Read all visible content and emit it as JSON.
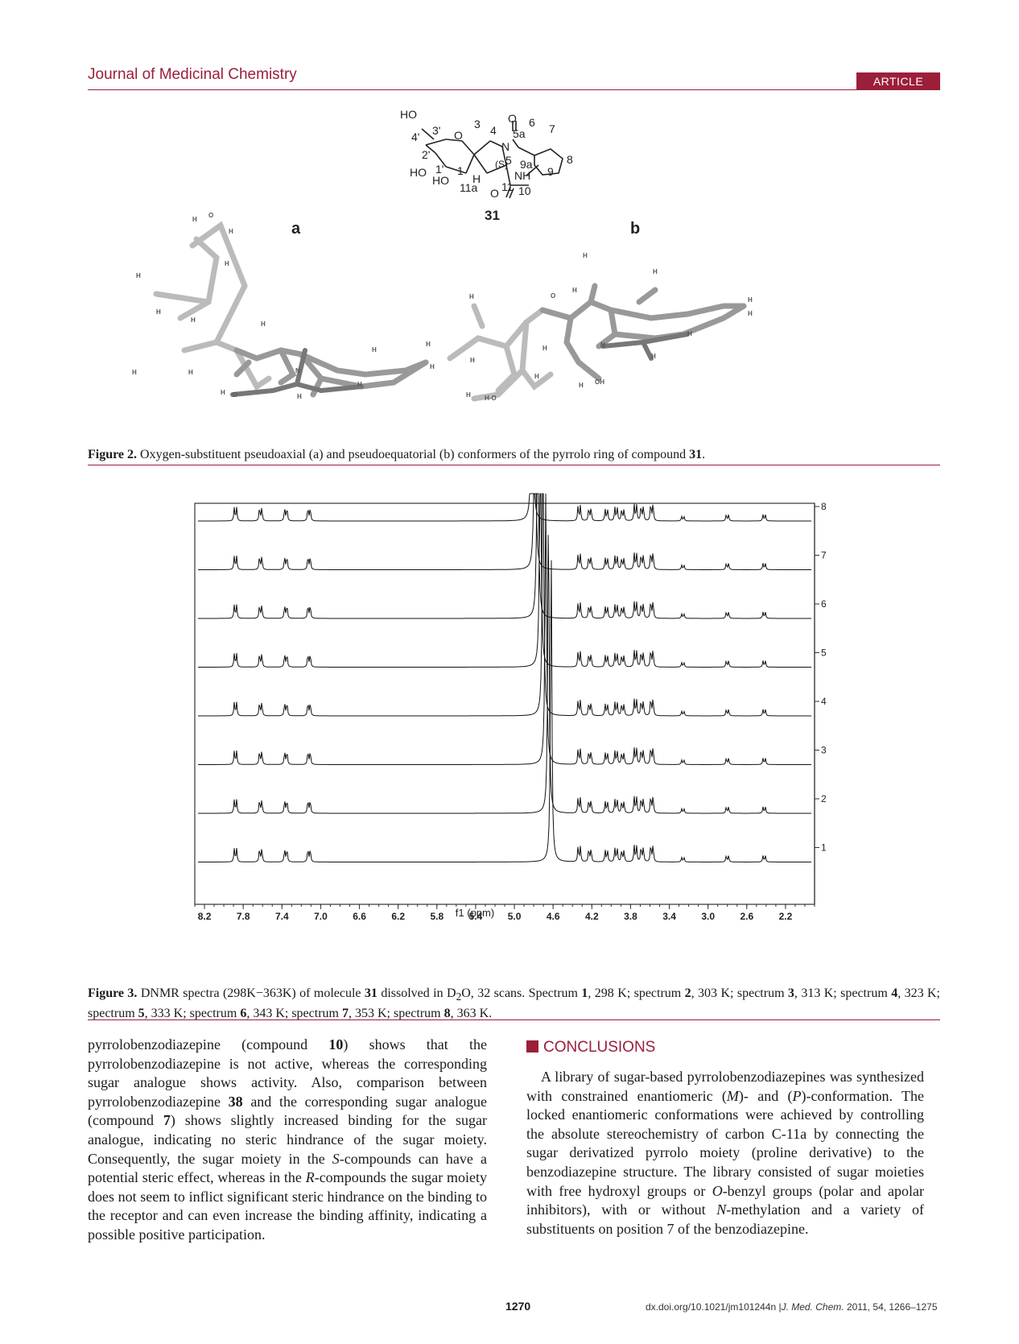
{
  "header": {
    "journal": "Journal of Medicinal Chemistry",
    "badge": "ARTICLE"
  },
  "figure2": {
    "compound_label": "31",
    "panel_a": "a",
    "panel_b": "b",
    "structure_labels": [
      "HO",
      "O",
      "3'",
      "4'",
      "3",
      "4",
      "6",
      "7",
      "5a",
      "N",
      "5",
      "2'",
      "1'",
      "(S)",
      "9a",
      "8",
      "HO",
      "HO",
      "1",
      "H",
      "NH",
      "9",
      "11a",
      "O",
      "11",
      "10"
    ],
    "caption_bold": "Figure 2.",
    "caption_text": " Oxygen-substituent pseudoaxial (a) and pseudoequatorial (b) conformers of the pyrrolo ring of compound ",
    "caption_compound": "31",
    "caption_end": "."
  },
  "figure3": {
    "x_axis_label": "f1 (ppm)",
    "x_ticks": [
      "8.2",
      "7.8",
      "7.4",
      "7.0",
      "6.6",
      "6.2",
      "5.8",
      "5.4",
      "5.0",
      "4.6",
      "4.2",
      "3.8",
      "3.4",
      "3.0",
      "2.6",
      "2.2"
    ],
    "spectrum_labels": [
      "8",
      "7",
      "6",
      "5",
      "4",
      "3",
      "2",
      "1"
    ],
    "caption": {
      "label": "Figure 3.",
      "t1": " DNMR spectra (298K−363K) of molecule ",
      "molecule": "31",
      "t2": " dissolved in D",
      "sub": "2",
      "t3": "O, 32 scans. Spectrum ",
      "s1": "1",
      "t4": ", 298 K; spectrum ",
      "s2": "2",
      "t5": ", 303 K; spectrum ",
      "s3": "3",
      "t6": ", 313 K; spectrum ",
      "s4": "4",
      "t7": ", 323 K; spectrum ",
      "s5": "5",
      "t8": ", 333 K; spectrum ",
      "s6": "6",
      "t9": ", 343 K; spectrum ",
      "s7": "7",
      "t10": ", 353 K; spectrum ",
      "s8": "8",
      "t11": ", 363 K."
    }
  },
  "chart_data": {
    "type": "line",
    "title": "",
    "xlabel": "f1 (ppm)",
    "ylabel": "",
    "x_reversed": true,
    "xlim": [
      8.3,
      1.9
    ],
    "series": [
      {
        "name": "1",
        "temperature": "298 K"
      },
      {
        "name": "2",
        "temperature": "303 K"
      },
      {
        "name": "3",
        "temperature": "313 K"
      },
      {
        "name": "4",
        "temperature": "323 K"
      },
      {
        "name": "5",
        "temperature": "333 K"
      },
      {
        "name": "6",
        "temperature": "343 K"
      },
      {
        "name": "7",
        "temperature": "353 K"
      },
      {
        "name": "8",
        "temperature": "363 K"
      }
    ],
    "peaks_ppm": [
      7.88,
      7.62,
      7.36,
      7.12,
      4.62,
      4.33,
      4.22,
      4.05,
      3.95,
      3.88,
      3.75,
      3.68,
      3.58,
      3.26,
      2.8,
      2.42
    ]
  },
  "left_column": {
    "p1": "pyrrolobenzodiazepine (compound ",
    "c10": "10",
    "p2": ") shows that the pyrrolobenzodiazepine is not active, whereas the corresponding sugar analogue shows activity. Also, comparison between pyrrolobenzodiazepine ",
    "c38": "38",
    "p3": " and the corresponding sugar analogue (compound ",
    "c7": "7",
    "p4": ") shows slightly increased binding for the sugar analogue, indicating no steric hindrance of the sugar moiety. Consequently, the sugar moiety in the ",
    "s_italic": "S",
    "p5": "-compounds can have a potential steric effect, whereas in the ",
    "r_italic": "R",
    "p6": "-compounds the sugar moiety does not seem to inflict significant steric hindrance on the binding to the receptor and can even increase the binding affinity, indicating a possible positive participation."
  },
  "conclusions": {
    "heading": "CONCLUSIONS",
    "p1": "A library of sugar-based pyrrolobenzodiazepines was synthesized with constrained enantiomeric (",
    "m": "M",
    "p2": ")- and (",
    "p": "P",
    "p3": ")-conformation. The locked enantiomeric conformations were achieved by controlling the absolute stereochemistry of carbon C-11a by connecting the sugar derivatized pyrrolo moiety (proline derivative) to the benzodiazepine structure. The library consisted of sugar moieties with free hydroxyl groups or ",
    "o": "O",
    "p4": "-benzyl groups (polar and apolar inhibitors), with or without ",
    "n": "N",
    "p5": "-methylation and a variety of substituents on position 7 of the benzodiazepine."
  },
  "footer": {
    "page": "1270",
    "doi": "dx.doi.org/10.1021/jm101244n |",
    "journal_abbr": "J. Med. Chem.",
    "citation": " 2011, 54, 1266–1275"
  }
}
